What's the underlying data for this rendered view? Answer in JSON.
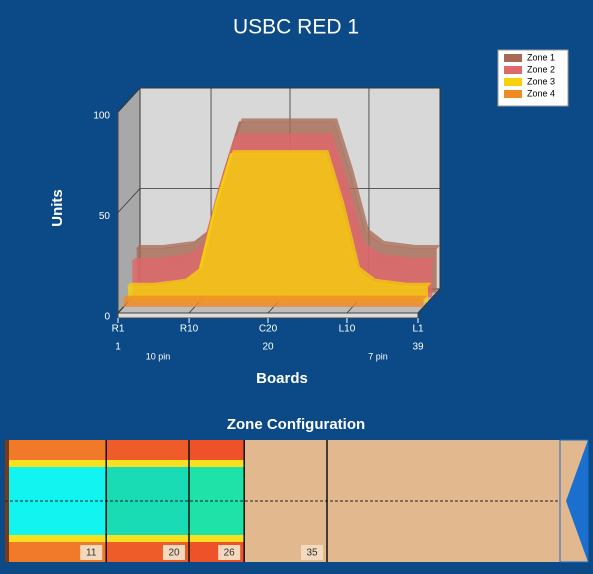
{
  "chart_data": {
    "type": "area3d",
    "title": "USBC RED 1",
    "y_label": "Units",
    "x_label": "Boards",
    "x": [
      1,
      4,
      8,
      10,
      12,
      14,
      20,
      26,
      28,
      30,
      32,
      36,
      39
    ],
    "xlim": [
      1,
      39
    ],
    "xticks": [
      {
        "value": 1,
        "label": "R1"
      },
      {
        "value": 10,
        "label": "R10"
      },
      {
        "value": 20,
        "label": "C20"
      },
      {
        "value": 30,
        "label": "L10"
      },
      {
        "value": 39,
        "label": "L1"
      }
    ],
    "board_numbers": [
      "1",
      "20",
      "39"
    ],
    "pin_labels": [
      "10 pin",
      "7 pin"
    ],
    "ylim": [
      0,
      100
    ],
    "yticks": [
      0,
      50,
      100
    ],
    "grid": true,
    "legend": "top-right",
    "series": [
      {
        "name": "Zone 1",
        "color": "#a86a55",
        "values": [
          22,
          22,
          24,
          30,
          60,
          85,
          85,
          85,
          60,
          30,
          24,
          22,
          22
        ]
      },
      {
        "name": "Zone 2",
        "color": "#e0676a",
        "values": [
          18,
          18,
          20,
          26,
          55,
          80,
          80,
          80,
          55,
          26,
          20,
          18,
          18
        ]
      },
      {
        "name": "Zone 3",
        "color": "#f7d10a",
        "values": [
          8,
          8,
          10,
          16,
          48,
          74,
          74,
          74,
          48,
          16,
          10,
          8,
          8
        ]
      },
      {
        "name": "Zone 4",
        "color": "#f08a24",
        "values": [
          4,
          4,
          4,
          4,
          4,
          4,
          4,
          4,
          4,
          4,
          4,
          4,
          4
        ]
      }
    ]
  },
  "zone_configuration": {
    "title": "Zone Configuration",
    "boundaries": [
      11,
      20,
      26,
      35
    ]
  }
}
